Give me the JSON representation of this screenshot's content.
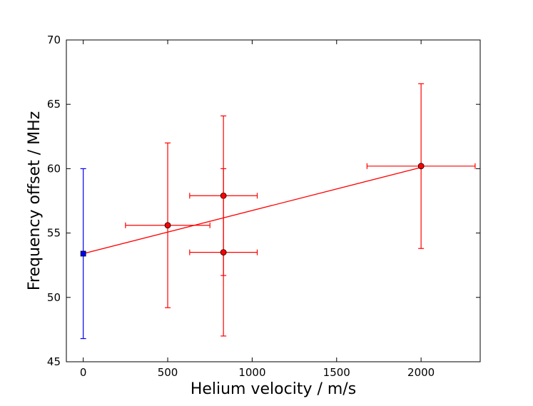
{
  "chart_data": {
    "type": "scatter",
    "xlabel": "Helium velocity / m/s",
    "ylabel": "Frequency offset / MHz",
    "xlim": [
      -100,
      2350
    ],
    "ylim": [
      45,
      70
    ],
    "xticks": [
      0,
      500,
      1000,
      1500,
      2000
    ],
    "yticks": [
      45,
      50,
      55,
      60,
      65,
      70
    ],
    "grid": false,
    "series": [
      {
        "marker": "square",
        "color": "#0000ff",
        "points": [
          {
            "x": 0,
            "y": 53.4,
            "yerr_low": 46.8,
            "yerr_high": 60.0
          }
        ]
      },
      {
        "marker": "circle",
        "color": "#ff0000",
        "points": [
          {
            "x": 500,
            "y": 55.6,
            "xerr_low": 250,
            "xerr_high": 750,
            "yerr_low": 49.2,
            "yerr_high": 62.0
          },
          {
            "x": 830,
            "y": 57.9,
            "xerr_low": 630,
            "xerr_high": 1030,
            "yerr_low": 51.7,
            "yerr_high": 64.1
          },
          {
            "x": 830,
            "y": 53.5,
            "xerr_low": 630,
            "xerr_high": 1030,
            "yerr_low": 47.0,
            "yerr_high": 60.0
          },
          {
            "x": 2000,
            "y": 60.2,
            "xerr_low": 1680,
            "xerr_high": 2320,
            "yerr_low": 53.8,
            "yerr_high": 66.6
          }
        ]
      }
    ],
    "fit_line": {
      "color": "#ff0000",
      "points": [
        {
          "x": 0,
          "y": 53.4
        },
        {
          "x": 2000,
          "y": 60.1
        }
      ]
    }
  }
}
